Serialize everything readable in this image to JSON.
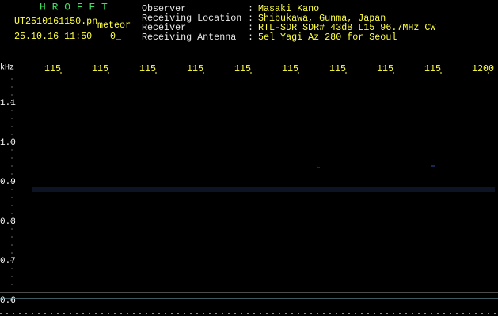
{
  "header": {
    "app_title": "H R O F F T",
    "file_name": "UT2510161150.pn",
    "mode": "meteor",
    "datetime": "25.10.16 11:50",
    "status": "0_"
  },
  "info": [
    {
      "label": "Observer",
      "value": "Masaki Kano"
    },
    {
      "label": "Receiving Location",
      "value": "Shibukawa, Gunma, Japan"
    },
    {
      "label": "Receiver",
      "value": "RTL-SDR SDR# 43dB L15 96.7MHz CW"
    },
    {
      "label": "Receiving Antenna",
      "value": "5el Yagi Az 280 for Seoul"
    }
  ],
  "separator": ":",
  "axis": {
    "unit": "kHz",
    "x_labels": [
      "115",
      "115",
      "115",
      "115",
      "115",
      "115",
      "115",
      "115",
      "115",
      "1200"
    ],
    "y_labels": [
      "1.1",
      "1.0",
      "0.9",
      "0.8",
      "0.7",
      "0.6"
    ]
  }
}
